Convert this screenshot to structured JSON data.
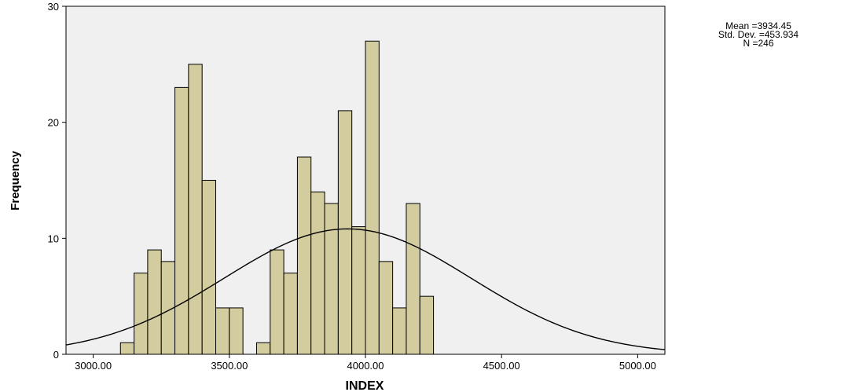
{
  "chart_data": {
    "type": "bar",
    "subtype": "histogram",
    "xlabel": "INDEX",
    "ylabel": "Frequency",
    "xlim": [
      2900,
      5100
    ],
    "ylim": [
      0,
      30
    ],
    "x_tick_values": [
      3000,
      3500,
      4000,
      4500,
      5000
    ],
    "x_tick_labels": [
      "3000.00",
      "3500.00",
      "4000.00",
      "4500.00",
      "5000.00"
    ],
    "y_tick_values": [
      0,
      10,
      20,
      30
    ],
    "y_tick_labels": [
      "0",
      "10",
      "20",
      "30"
    ],
    "bin_width": 50,
    "bins": [
      {
        "x": 3100,
        "count": 1
      },
      {
        "x": 3150,
        "count": 7
      },
      {
        "x": 3200,
        "count": 9
      },
      {
        "x": 3250,
        "count": 8
      },
      {
        "x": 3300,
        "count": 23
      },
      {
        "x": 3350,
        "count": 25
      },
      {
        "x": 3400,
        "count": 15
      },
      {
        "x": 3450,
        "count": 4
      },
      {
        "x": 3500,
        "count": 4
      },
      {
        "x": 3600,
        "count": 1
      },
      {
        "x": 3650,
        "count": 9
      },
      {
        "x": 3700,
        "count": 7
      },
      {
        "x": 3750,
        "count": 17
      },
      {
        "x": 3800,
        "count": 14
      },
      {
        "x": 3850,
        "count": 13
      },
      {
        "x": 3900,
        "count": 21
      },
      {
        "x": 3950,
        "count": 11
      },
      {
        "x": 4000,
        "count": 27
      },
      {
        "x": 4050,
        "count": 8
      },
      {
        "x": 4100,
        "count": 4
      },
      {
        "x": 4150,
        "count": 13
      },
      {
        "x": 4200,
        "count": 5
      }
    ],
    "normal_curve": {
      "mean": 3934.45,
      "std_dev": 453.934,
      "n": 246
    },
    "grid": false,
    "colors": {
      "bar_fill": "#d3cc9e",
      "bar_stroke": "#000000",
      "plot_background": "#f0f0f0",
      "curve": "#000000"
    }
  },
  "stats_box": {
    "mean_text": "Mean =3934.45",
    "std_text": "Std. Dev. =453.934",
    "n_text": "N =246"
  }
}
